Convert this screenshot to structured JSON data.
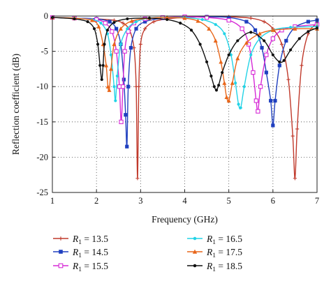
{
  "chart_data": {
    "type": "line",
    "title": "",
    "xlabel": "Frequency (GHz)",
    "ylabel": "Reflection coefficient (dB)",
    "xlim": [
      1,
      7
    ],
    "ylim": [
      -25,
      0
    ],
    "xticks": [
      "1",
      "2",
      "3",
      "4",
      "5",
      "6",
      "7"
    ],
    "yticks": [
      "0",
      "-5",
      "-10",
      "-15",
      "-20",
      "-25"
    ],
    "grid": true,
    "grid_style": "dotted",
    "legend_position": "below-plot",
    "legend_symbol": "R",
    "legend_subscript": "1",
    "series": [
      {
        "name": "13.5",
        "color": "#c0392b",
        "marker": "plus",
        "x": [
          1.0,
          1.5,
          2.0,
          2.4,
          2.6,
          2.75,
          2.85,
          2.9,
          2.93,
          2.96,
          3.0,
          3.1,
          3.3,
          3.6,
          4.0,
          4.5,
          5.0,
          5.5,
          5.8,
          6.0,
          6.2,
          6.35,
          6.45,
          6.5,
          6.55,
          6.65,
          6.8,
          7.0
        ],
        "y": [
          -0.2,
          -0.3,
          -0.4,
          -0.6,
          -1.0,
          -2.0,
          -4.5,
          -10.0,
          -23.0,
          -10.0,
          -4.0,
          -1.8,
          -0.8,
          -0.4,
          -0.2,
          -0.1,
          -0.1,
          -0.3,
          -0.8,
          -1.8,
          -4.0,
          -9.0,
          -17.0,
          -23.0,
          -16.0,
          -7.0,
          -2.5,
          -1.0
        ]
      },
      {
        "name": "14.5",
        "color": "#1f3fbf",
        "marker": "square-filled",
        "x": [
          1.0,
          1.5,
          2.0,
          2.3,
          2.45,
          2.55,
          2.62,
          2.66,
          2.69,
          2.72,
          2.78,
          2.9,
          3.1,
          3.5,
          4.0,
          4.5,
          5.0,
          5.4,
          5.6,
          5.75,
          5.85,
          5.95,
          6.0,
          6.05,
          6.15,
          6.3,
          6.5,
          6.8,
          7.0
        ],
        "y": [
          -0.2,
          -0.3,
          -0.4,
          -0.8,
          -1.8,
          -4.0,
          -9.0,
          -14.0,
          -18.5,
          -10.0,
          -4.5,
          -1.8,
          -0.8,
          -0.3,
          -0.1,
          -0.1,
          -0.2,
          -0.8,
          -2.0,
          -4.5,
          -8.0,
          -12.0,
          -15.5,
          -12.0,
          -7.0,
          -3.5,
          -1.6,
          -0.8,
          -0.6
        ]
      },
      {
        "name": "15.5",
        "color": "#d62ad6",
        "marker": "square-open",
        "x": [
          1.0,
          1.5,
          2.0,
          2.2,
          2.35,
          2.45,
          2.52,
          2.56,
          2.6,
          2.64,
          2.72,
          2.85,
          3.1,
          3.5,
          4.0,
          4.5,
          5.0,
          5.3,
          5.45,
          5.55,
          5.62,
          5.66,
          5.72,
          5.85,
          6.0,
          6.2,
          6.5,
          7.0
        ],
        "y": [
          -0.2,
          -0.3,
          -0.5,
          -1.0,
          -2.2,
          -5.0,
          -10.0,
          -15.0,
          -10.0,
          -5.0,
          -2.2,
          -1.0,
          -0.4,
          -0.2,
          -0.1,
          -0.2,
          -0.6,
          -1.8,
          -4.0,
          -8.0,
          -12.0,
          -13.5,
          -10.0,
          -5.5,
          -3.2,
          -2.0,
          -1.5,
          -1.2
        ]
      },
      {
        "name": "16.5",
        "color": "#22d3e6",
        "marker": "circle-filled",
        "x": [
          1.0,
          1.5,
          1.9,
          2.1,
          2.25,
          2.33,
          2.4,
          2.43,
          2.47,
          2.55,
          2.7,
          2.9,
          3.2,
          3.6,
          4.0,
          4.4,
          4.7,
          4.9,
          5.05,
          5.15,
          5.22,
          5.27,
          5.35,
          5.5,
          5.7,
          6.0,
          6.4,
          7.0
        ],
        "y": [
          -0.2,
          -0.3,
          -0.5,
          -1.0,
          -2.5,
          -5.5,
          -10.0,
          -12.0,
          -8.5,
          -4.0,
          -1.8,
          -0.8,
          -0.3,
          -0.2,
          -0.2,
          -0.5,
          -1.2,
          -2.5,
          -5.5,
          -9.5,
          -12.5,
          -13.0,
          -10.0,
          -5.5,
          -3.2,
          -2.0,
          -1.6,
          -1.5
        ]
      },
      {
        "name": "17.5",
        "color": "#e8661a",
        "marker": "triangle-filled",
        "x": [
          1.0,
          1.5,
          1.9,
          2.05,
          2.15,
          2.22,
          2.26,
          2.29,
          2.33,
          2.4,
          2.55,
          2.8,
          3.2,
          3.6,
          4.0,
          4.3,
          4.55,
          4.7,
          4.82,
          4.9,
          4.95,
          5.0,
          5.08,
          5.2,
          5.4,
          5.7,
          6.0,
          6.5,
          7.0
        ],
        "y": [
          -0.2,
          -0.3,
          -0.6,
          -1.5,
          -4.0,
          -7.0,
          -10.0,
          -10.5,
          -7.5,
          -4.0,
          -1.8,
          -0.7,
          -0.3,
          -0.2,
          -0.3,
          -0.7,
          -1.8,
          -3.5,
          -6.5,
          -9.5,
          -11.5,
          -12.0,
          -9.5,
          -6.0,
          -3.8,
          -2.5,
          -2.0,
          -1.8,
          -1.8
        ]
      },
      {
        "name": "18.5",
        "color": "#111111",
        "marker": "circle-filled",
        "x": [
          1.0,
          1.5,
          1.8,
          1.95,
          2.03,
          2.08,
          2.12,
          2.15,
          2.18,
          2.25,
          2.4,
          2.7,
          3.2,
          3.6,
          3.9,
          4.15,
          4.35,
          4.5,
          4.6,
          4.67,
          4.72,
          4.77,
          4.85,
          5.0,
          5.2,
          5.5,
          5.8,
          6.0,
          6.15,
          6.25,
          6.4,
          6.6,
          6.8,
          7.0
        ],
        "y": [
          -0.2,
          -0.4,
          -0.8,
          -1.8,
          -4.0,
          -7.0,
          -9.0,
          -7.0,
          -4.0,
          -2.0,
          -0.9,
          -0.4,
          -0.3,
          -0.5,
          -1.0,
          -2.0,
          -4.0,
          -6.5,
          -8.5,
          -10.0,
          -10.5,
          -9.8,
          -8.0,
          -5.5,
          -3.5,
          -2.3,
          -3.5,
          -5.5,
          -6.5,
          -6.3,
          -4.8,
          -3.2,
          -2.2,
          -1.7
        ]
      }
    ]
  }
}
